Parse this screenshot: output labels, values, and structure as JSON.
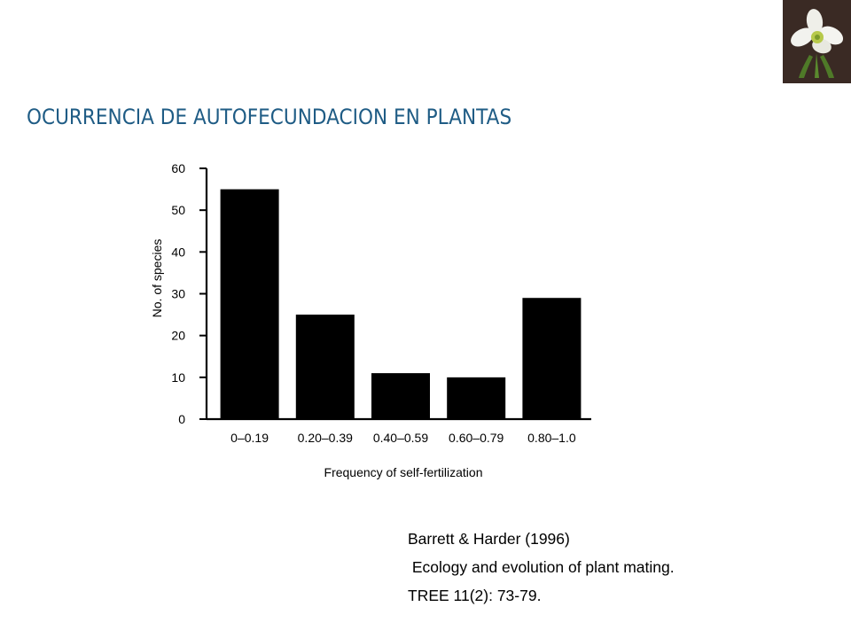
{
  "slide": {
    "title": "OCURRENCIA DE AUTOFECUNDACION EN PLANTAS"
  },
  "logo": {
    "icon": "flower-photo-icon",
    "background": "#3a2a24"
  },
  "chart_data": {
    "type": "bar",
    "title": "",
    "xlabel": "Frequency of self-fertilization",
    "ylabel": "No. of species",
    "categories": [
      "0–0.19",
      "0.20–0.39",
      "0.40–0.59",
      "0.60–0.79",
      "0.80–1.0"
    ],
    "values": [
      55,
      25,
      11,
      10,
      29
    ],
    "ylim": [
      0,
      60
    ],
    "yticks": [
      0,
      10,
      20,
      30,
      40,
      50,
      60
    ],
    "grid": false,
    "bar_color": "#000000"
  },
  "citation": {
    "line1": "Barrett & Harder (1996)",
    "line2": " Ecology and evolution of plant mating.",
    "line3": "TREE 11(2): 73-79."
  }
}
